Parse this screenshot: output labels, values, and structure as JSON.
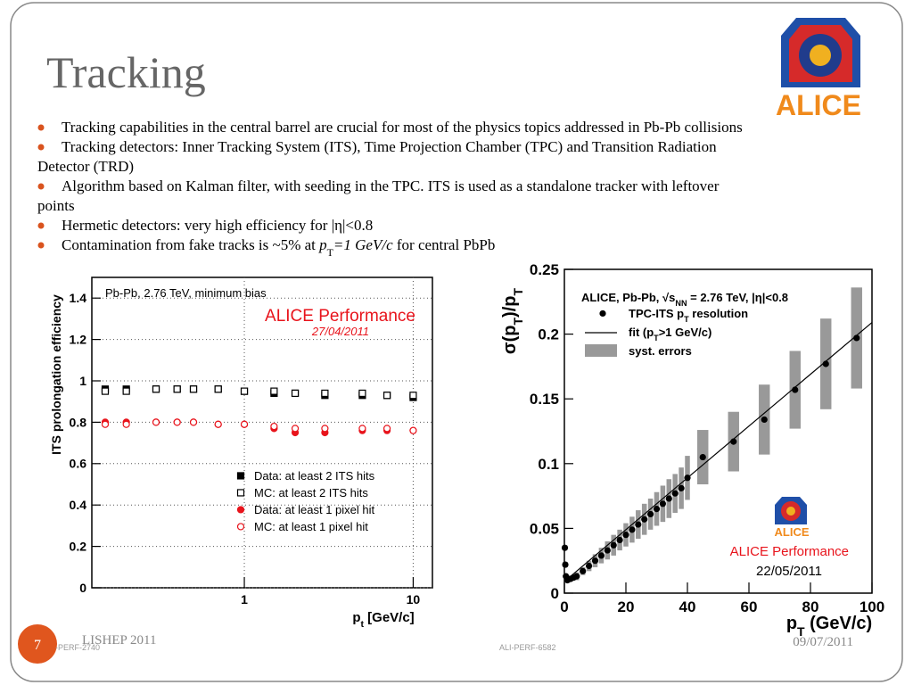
{
  "title": "Tracking",
  "bullets": [
    [
      "Tracking capabilities in the central barrel are crucial for most of the physics topics addressed in Pb-Pb collisions"
    ],
    [
      "Tracking detectors: Inner Tracking System (ITS), Time Projection Chamber (TPC) and Transition Radiation",
      "Detector (TRD)"
    ],
    [
      "Algorithm based on Kalman filter, with seeding in the TPC. ITS is used as a standalone  tracker with leftover",
      "points"
    ],
    [
      "Hermetic detectors: very high efficiency for |η|<0.8"
    ],
    [
      [
        "Contamination  from fake tracks is ~5% at ",
        {
          "it": "p"
        },
        {
          "sub": "T"
        },
        {
          "it": "=1 GeV/c"
        },
        " for central PbPb"
      ]
    ]
  ],
  "logo_text": "ALICE",
  "footer": {
    "event": "LISHEP 2011",
    "date": "09/07/2011",
    "page": "7"
  },
  "image_ids": [
    "-PERF-2740",
    "ALI-PERF-6582"
  ],
  "chart_data": [
    {
      "type": "scatter",
      "log_x": true,
      "xlim": [
        0.125,
        13
      ],
      "xticks": [
        1,
        10
      ],
      "ylim": [
        0,
        1.5
      ],
      "yticks": [
        0,
        0.2,
        0.4,
        0.6,
        0.8,
        1,
        1.2,
        1.4
      ],
      "grid": true,
      "y_label": "ITS prolongation efficiency",
      "x_label": [
        "p",
        {
          "sub": "t"
        },
        " [GeV/c]"
      ],
      "annotations": [
        "Pb-Pb, 2.76 TeV, minimum bias",
        "ALICE Performance",
        "27/04/2011"
      ],
      "x": [
        0.15,
        0.2,
        0.3,
        0.4,
        0.5,
        0.7,
        1,
        1.5,
        2,
        3,
        5,
        7,
        10
      ],
      "series": [
        {
          "name": "Data: at least 2 ITS hits",
          "color": "#000000",
          "marker": "square",
          "filled": true,
          "values": [
            0.96,
            0.96,
            0.96,
            0.96,
            0.96,
            0.96,
            0.95,
            0.94,
            0.94,
            0.93,
            0.93,
            0.93,
            0.92
          ]
        },
        {
          "name": "MC: at least 2 ITS hits",
          "color": "#000000",
          "marker": "square",
          "filled": false,
          "values": [
            0.95,
            0.95,
            0.96,
            0.96,
            0.96,
            0.96,
            0.95,
            0.95,
            0.94,
            0.94,
            0.94,
            0.93,
            0.93
          ]
        },
        {
          "name": "Data: at least 1 pixel hit",
          "color": "#e8141c",
          "marker": "circle",
          "filled": true,
          "values": [
            0.8,
            0.8,
            0.8,
            0.8,
            0.8,
            0.79,
            0.79,
            0.77,
            0.75,
            0.75,
            0.76,
            0.76,
            0.76
          ]
        },
        {
          "name": "MC: at least 1 pixel hit",
          "color": "#e8141c",
          "marker": "circle",
          "filled": false,
          "values": [
            0.79,
            0.79,
            0.8,
            0.8,
            0.8,
            0.79,
            0.79,
            0.78,
            0.77,
            0.77,
            0.77,
            0.77,
            0.76
          ]
        }
      ]
    },
    {
      "type": "scatter",
      "log_x": false,
      "xlim": [
        0,
        100
      ],
      "xticks": [
        0,
        20,
        40,
        60,
        80,
        100
      ],
      "ylim": [
        0,
        0.25
      ],
      "yticks": [
        0,
        0.05,
        0.1,
        0.15,
        0.2,
        0.25
      ],
      "grid": false,
      "y_label": [
        "σ(p",
        {
          "sub": "T"
        },
        ")/p",
        {
          "sub": "T"
        }
      ],
      "x_label": [
        "p",
        {
          "sub": "T"
        },
        " (GeV/c)"
      ],
      "annotations": [
        [
          "ALICE, Pb-Pb, √s",
          {
            "sub": "NN"
          },
          " = 2.76 TeV, |η|<0.8"
        ],
        "ALICE",
        "ALICE Performance",
        "22/05/2011"
      ],
      "x": [
        0.15,
        0.3,
        0.5,
        1,
        2,
        3,
        4,
        6,
        8,
        10,
        12,
        14,
        16,
        18,
        20,
        22,
        24,
        26,
        28,
        30,
        32,
        34,
        36,
        38,
        40,
        45,
        55,
        65,
        75,
        85,
        95
      ],
      "series": [
        {
          "name": [
            "TPC-ITS p",
            {
              "sub": "T"
            },
            " resolution"
          ],
          "color": "#000000",
          "marker": "circle",
          "filled": true,
          "values": [
            0.035,
            0.022,
            0.013,
            0.01,
            0.011,
            0.012,
            0.013,
            0.017,
            0.021,
            0.025,
            0.029,
            0.033,
            0.037,
            0.041,
            0.045,
            0.049,
            0.053,
            0.057,
            0.061,
            0.065,
            0.069,
            0.073,
            0.077,
            0.081,
            0.089,
            0.105,
            0.117,
            0.134,
            0.157,
            0.177,
            0.197
          ],
          "y_err_name": "syst. errors",
          "err_color": "#999999",
          "y_err": [
            0.002,
            0.002,
            0.002,
            0.002,
            0.002,
            0.002,
            0.003,
            0.003,
            0.004,
            0.005,
            0.006,
            0.007,
            0.008,
            0.008,
            0.009,
            0.01,
            0.011,
            0.012,
            0.012,
            0.013,
            0.014,
            0.015,
            0.015,
            0.016,
            0.017,
            0.021,
            0.023,
            0.027,
            0.03,
            0.035,
            0.039
          ]
        }
      ],
      "fit": {
        "name": [
          "fit (p",
          {
            "sub": "T"
          },
          ">1 GeV/c)"
        ],
        "color": "#000000",
        "x": [
          1,
          100
        ],
        "values": [
          0.011,
          0.209
        ]
      }
    }
  ]
}
